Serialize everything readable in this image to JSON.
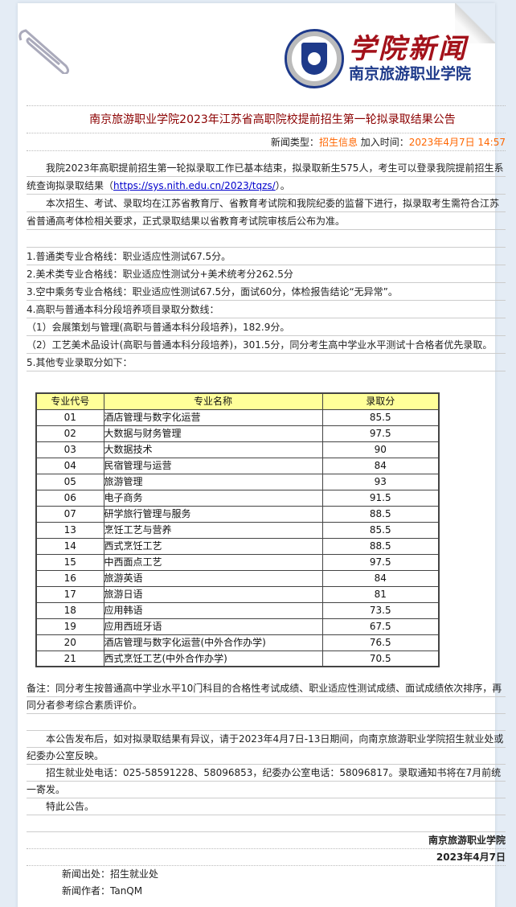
{
  "logo": {
    "title": "学院新闻",
    "school": "南京旅游职业学院"
  },
  "article": {
    "title": "南京旅游职业学院2023年江苏省高职院校提前招生第一轮拟录取结果公告",
    "meta": {
      "type_label": "新闻类型：",
      "type_value": "招生信息",
      "time_label": " 加入时间：",
      "time_value": "2023年4月7日 14:57"
    },
    "intro1_a": "我院2023年高职提前招生第一轮拟录取工作已基本结束，拟录取新生575人，考生可以登录我院提前招生系统查询拟录取结果（",
    "intro1_link": "https://sys.nith.edu.cn/2023/tqzs/",
    "intro1_b": "）。",
    "intro2": "本次招生、考试、录取均在江苏省教育厅、省教育考试院和我院纪委的监督下进行，拟录取考生需符合江苏省普通高考体检相关要求，正式录取结果以省教育考试院审核后公布为准。",
    "items": [
      "1.普通类专业合格线：职业适应性测试67.5分。",
      "2.美术类专业合格线：职业适应性测试分+美术统考分262.5分",
      "3.空中乘务专业合格线：职业适应性测试67.5分，面试60分，体检报告结论“无异常”。",
      "4.高职与普通本科分段培养项目录取分数线：",
      "（1）会展策划与管理(高职与普通本科分段培养)，182.9分。",
      "（2）工艺美术品设计(高职与普通本科分段培养)，301.5分，同分考生高中学业水平测试十合格者优先录取。",
      "5.其他专业录取分如下："
    ],
    "table": {
      "headers": [
        "专业代号",
        "专业名称",
        "录取分"
      ],
      "rows": [
        [
          "01",
          "酒店管理与数字化运营",
          "85.5"
        ],
        [
          "02",
          "大数据与财务管理",
          "97.5"
        ],
        [
          "03",
          "大数据技术",
          "90"
        ],
        [
          "04",
          "民宿管理与运营",
          "84"
        ],
        [
          "05",
          "旅游管理",
          "93"
        ],
        [
          "06",
          "电子商务",
          "91.5"
        ],
        [
          "07",
          "研学旅行管理与服务",
          "88.5"
        ],
        [
          "13",
          "烹饪工艺与营养",
          "85.5"
        ],
        [
          "14",
          "西式烹饪工艺",
          "88.5"
        ],
        [
          "15",
          "中西面点工艺",
          "97.5"
        ],
        [
          "16",
          "旅游英语",
          "84"
        ],
        [
          "17",
          "旅游日语",
          "81"
        ],
        [
          "18",
          "应用韩语",
          "73.5"
        ],
        [
          "19",
          "应用西班牙语",
          "67.5"
        ],
        [
          "20",
          "酒店管理与数字化运营(中外合作办学)",
          "76.5"
        ],
        [
          "21",
          "西式烹饪工艺(中外合作办学)",
          "70.5"
        ]
      ]
    },
    "note": "备注：同分考生按普通高中学业水平10门科目的合格性考试成绩、职业适应性测试成绩、面试成绩依次排序，再同分者参考综合素质评价。",
    "p_objection": "本公告发布后，如对拟录取结果有异议，请于2023年4月7日-13日期间，向南京旅游职业学院招生就业处或纪委办公室反映。",
    "p_phone": "招生就业处电话：025-58591228、58096853，纪委办公室电话：58096817。录取通知书将在7月前统一寄发。",
    "p_end": "特此公告。",
    "signature": "南京旅游职业学院",
    "sign_date": "2023年4月7日",
    "source": "新闻出处：招生就业处",
    "author": "新闻作者：TanQM"
  }
}
